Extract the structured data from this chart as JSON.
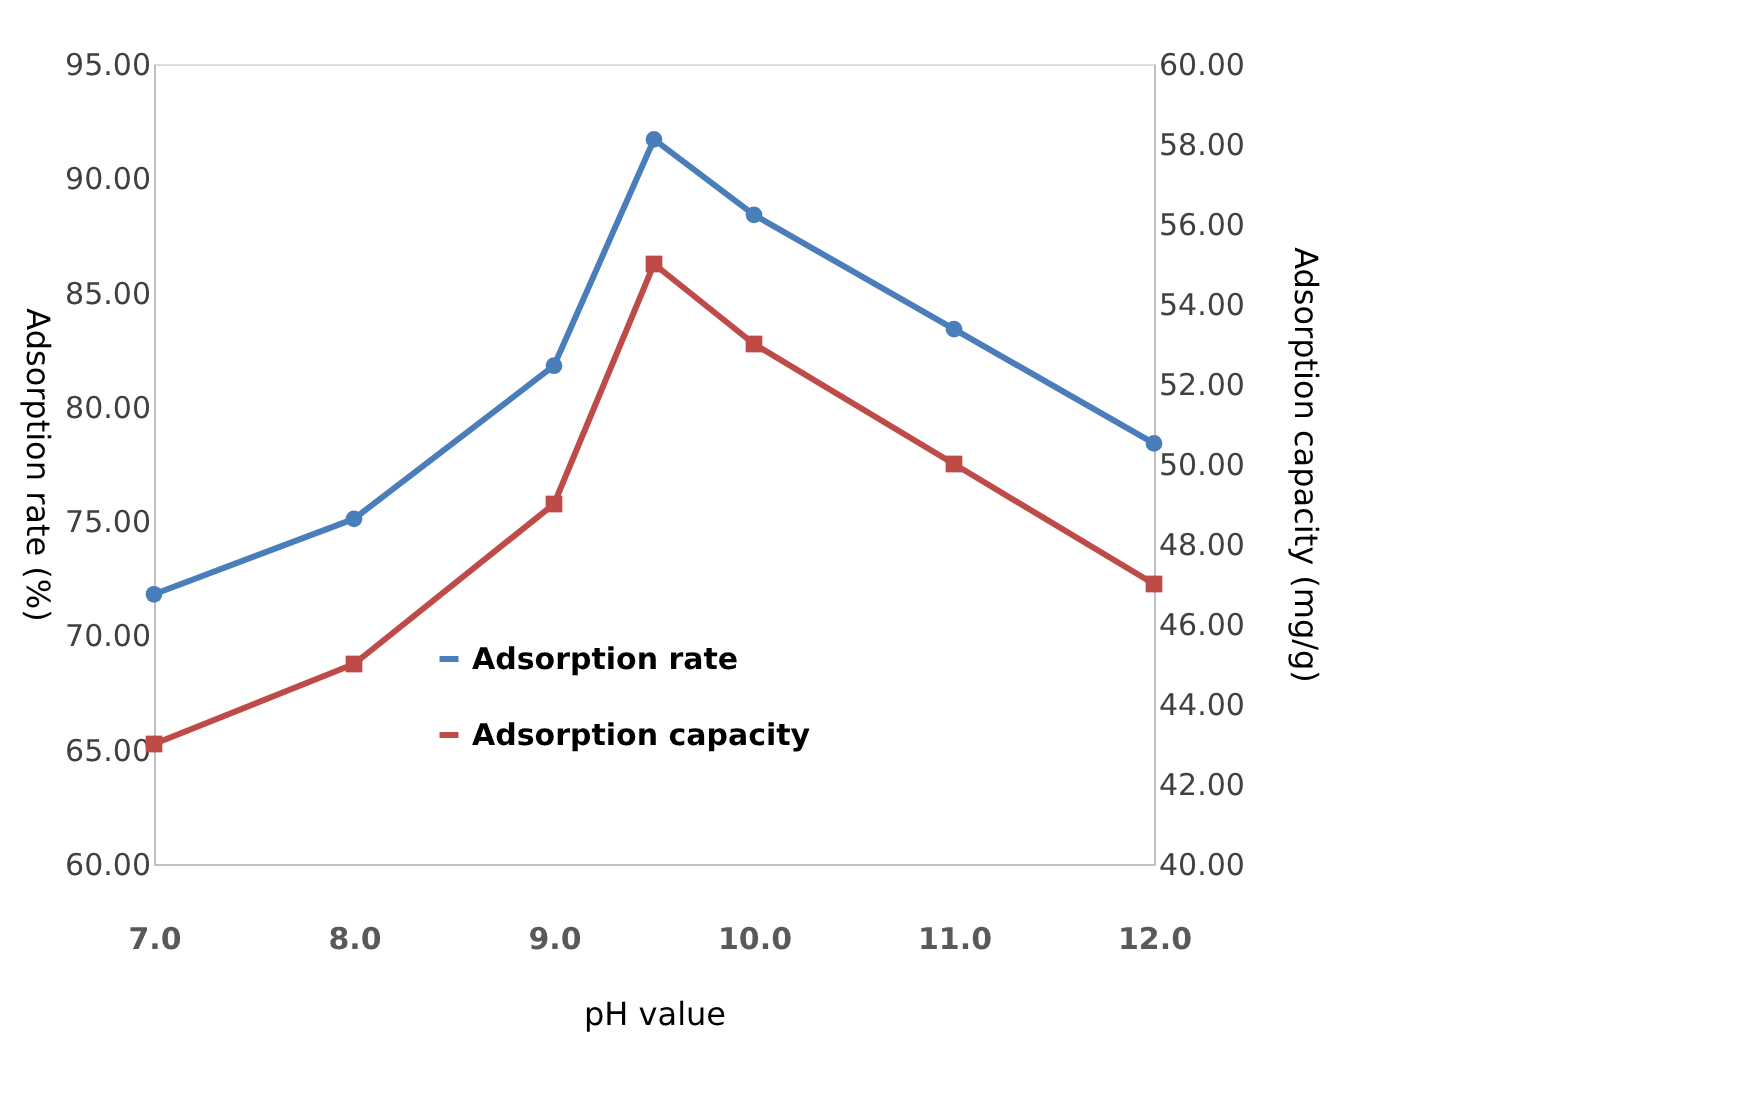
{
  "chart_data": {
    "type": "line",
    "xlabel": "pH value",
    "ylabel": "Adsorption rate (%)",
    "y2label": "Adsorption capacity (mg/g)",
    "x": [
      7,
      8,
      9,
      9.5,
      10,
      11,
      12
    ],
    "xlim": [
      7,
      12
    ],
    "xticks": [
      {
        "value": 7,
        "label": "7.0"
      },
      {
        "value": 8,
        "label": "8.0"
      },
      {
        "value": 9,
        "label": "9.0"
      },
      {
        "value": 10,
        "label": "10.0"
      },
      {
        "value": 11,
        "label": "11.0"
      },
      {
        "value": 12,
        "label": "12.0"
      }
    ],
    "ylim": [
      60,
      95
    ],
    "yticks": [
      {
        "value": 60,
        "label": "60.00"
      },
      {
        "value": 65,
        "label": "65.00"
      },
      {
        "value": 70,
        "label": "70.00"
      },
      {
        "value": 75,
        "label": "75.00"
      },
      {
        "value": 80,
        "label": "80.00"
      },
      {
        "value": 85,
        "label": "85.00"
      },
      {
        "value": 90,
        "label": "90.00"
      },
      {
        "value": 95,
        "label": "95.00"
      }
    ],
    "y2lim": [
      40,
      60
    ],
    "y2ticks": [
      {
        "value": 40,
        "label": "40.00"
      },
      {
        "value": 42,
        "label": "42.00"
      },
      {
        "value": 44,
        "label": "44.00"
      },
      {
        "value": 46,
        "label": "46.00"
      },
      {
        "value": 48,
        "label": "48.00"
      },
      {
        "value": 50,
        "label": "50.00"
      },
      {
        "value": 52,
        "label": "52.00"
      },
      {
        "value": 54,
        "label": "54.00"
      },
      {
        "value": 56,
        "label": "56.00"
      },
      {
        "value": 58,
        "label": "58.00"
      },
      {
        "value": 60,
        "label": "60.00"
      }
    ],
    "grid": false,
    "legend": "bottom",
    "line_style": "solid",
    "series": [
      {
        "name": "Adsorption rate",
        "color": "#4a7ebb",
        "marker": "circle",
        "values": [
          71.8,
          75.1,
          81.8,
          91.7,
          88.4,
          83.4,
          78.4
        ]
      },
      {
        "name": "Adsorption capacity",
        "color": "#be4b48",
        "marker": "square",
        "axis": "y2",
        "values": [
          43.0,
          45.0,
          49.0,
          55.0,
          53.0,
          50.0,
          47.0
        ]
      }
    ]
  }
}
